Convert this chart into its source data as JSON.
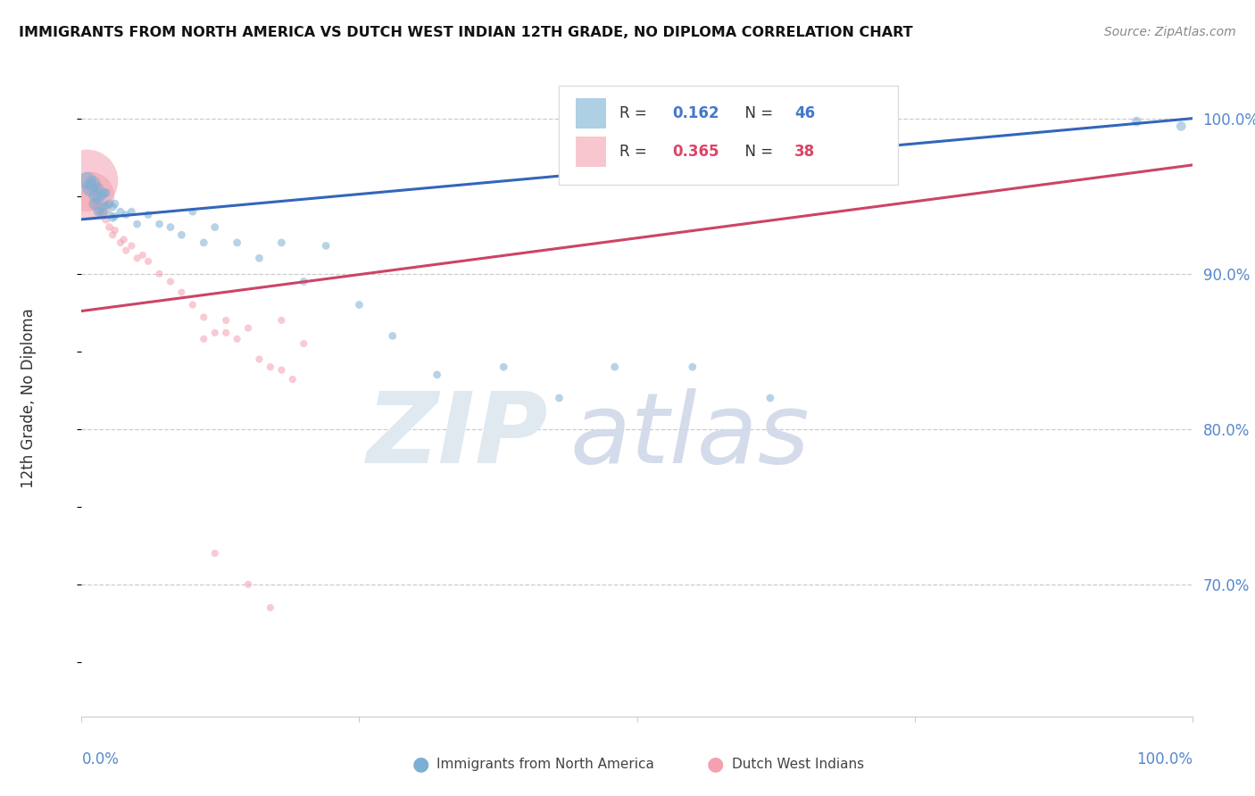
{
  "title": "IMMIGRANTS FROM NORTH AMERICA VS DUTCH WEST INDIAN 12TH GRADE, NO DIPLOMA CORRELATION CHART",
  "source": "Source: ZipAtlas.com",
  "ylabel": "12th Grade, No Diploma",
  "blue_R": 0.162,
  "blue_N": 46,
  "pink_R": 0.365,
  "pink_N": 38,
  "blue_color": "#7BAFD4",
  "pink_color": "#F4A0B0",
  "blue_line_color": "#3366BB",
  "pink_line_color": "#CC4466",
  "blue_text_color": "#4477CC",
  "pink_text_color": "#DD4466",
  "right_tick_color": "#5588CC",
  "ytick_values": [
    0.7,
    0.8,
    0.9,
    1.0
  ],
  "ytick_labels": [
    "70.0%",
    "80.0%",
    "90.0%",
    "100.0%"
  ],
  "xlim": [
    0.0,
    1.0
  ],
  "ylim": [
    0.615,
    1.025
  ],
  "blue_line_x0": 0.0,
  "blue_line_y0": 0.935,
  "blue_line_x1": 1.0,
  "blue_line_y1": 1.0,
  "pink_line_x0": 0.0,
  "pink_line_y0": 0.876,
  "pink_line_x1": 1.0,
  "pink_line_y1": 0.97,
  "blue_x": [
    0.005,
    0.008,
    0.01,
    0.012,
    0.012,
    0.015,
    0.015,
    0.015,
    0.018,
    0.018,
    0.02,
    0.02,
    0.022,
    0.022,
    0.025,
    0.025,
    0.028,
    0.028,
    0.03,
    0.03,
    0.035,
    0.04,
    0.045,
    0.05,
    0.06,
    0.07,
    0.08,
    0.09,
    0.1,
    0.11,
    0.12,
    0.14,
    0.16,
    0.18,
    0.2,
    0.22,
    0.25,
    0.28,
    0.32,
    0.38,
    0.43,
    0.48,
    0.55,
    0.62,
    0.95,
    0.99
  ],
  "blue_y": [
    0.96,
    0.955,
    0.958,
    0.95,
    0.945,
    0.955,
    0.948,
    0.94,
    0.95,
    0.94,
    0.952,
    0.943,
    0.952,
    0.944,
    0.945,
    0.938,
    0.943,
    0.936,
    0.945,
    0.937,
    0.94,
    0.938,
    0.94,
    0.932,
    0.938,
    0.932,
    0.93,
    0.925,
    0.94,
    0.92,
    0.93,
    0.92,
    0.91,
    0.92,
    0.895,
    0.918,
    0.88,
    0.86,
    0.835,
    0.84,
    0.82,
    0.84,
    0.84,
    0.82,
    0.998,
    0.995
  ],
  "blue_size": [
    200,
    180,
    160,
    100,
    90,
    80,
    70,
    65,
    60,
    55,
    60,
    55,
    50,
    50,
    50,
    45,
    45,
    45,
    45,
    40,
    40,
    40,
    40,
    40,
    40,
    40,
    40,
    40,
    40,
    40,
    40,
    40,
    40,
    40,
    40,
    40,
    40,
    40,
    40,
    40,
    40,
    40,
    40,
    40,
    60,
    60
  ],
  "pink_x": [
    0.005,
    0.008,
    0.01,
    0.012,
    0.015,
    0.018,
    0.02,
    0.022,
    0.025,
    0.028,
    0.03,
    0.035,
    0.038,
    0.04,
    0.045,
    0.05,
    0.055,
    0.06,
    0.07,
    0.08,
    0.09,
    0.1,
    0.11,
    0.12,
    0.13,
    0.14,
    0.15,
    0.16,
    0.17,
    0.18,
    0.19,
    0.2,
    0.12,
    0.15,
    0.17,
    0.18,
    0.11,
    0.13
  ],
  "pink_y": [
    0.96,
    0.95,
    0.955,
    0.945,
    0.942,
    0.938,
    0.94,
    0.935,
    0.93,
    0.925,
    0.928,
    0.92,
    0.922,
    0.915,
    0.918,
    0.91,
    0.912,
    0.908,
    0.9,
    0.895,
    0.888,
    0.88,
    0.872,
    0.862,
    0.87,
    0.858,
    0.865,
    0.845,
    0.84,
    0.838,
    0.832,
    0.855,
    0.72,
    0.7,
    0.685,
    0.87,
    0.858,
    0.862
  ],
  "pink_size": [
    2500,
    1500,
    200,
    120,
    80,
    60,
    50,
    45,
    40,
    38,
    38,
    36,
    36,
    35,
    35,
    35,
    35,
    35,
    35,
    35,
    35,
    35,
    35,
    35,
    35,
    35,
    35,
    35,
    35,
    35,
    35,
    35,
    35,
    35,
    35,
    35,
    35,
    35
  ]
}
